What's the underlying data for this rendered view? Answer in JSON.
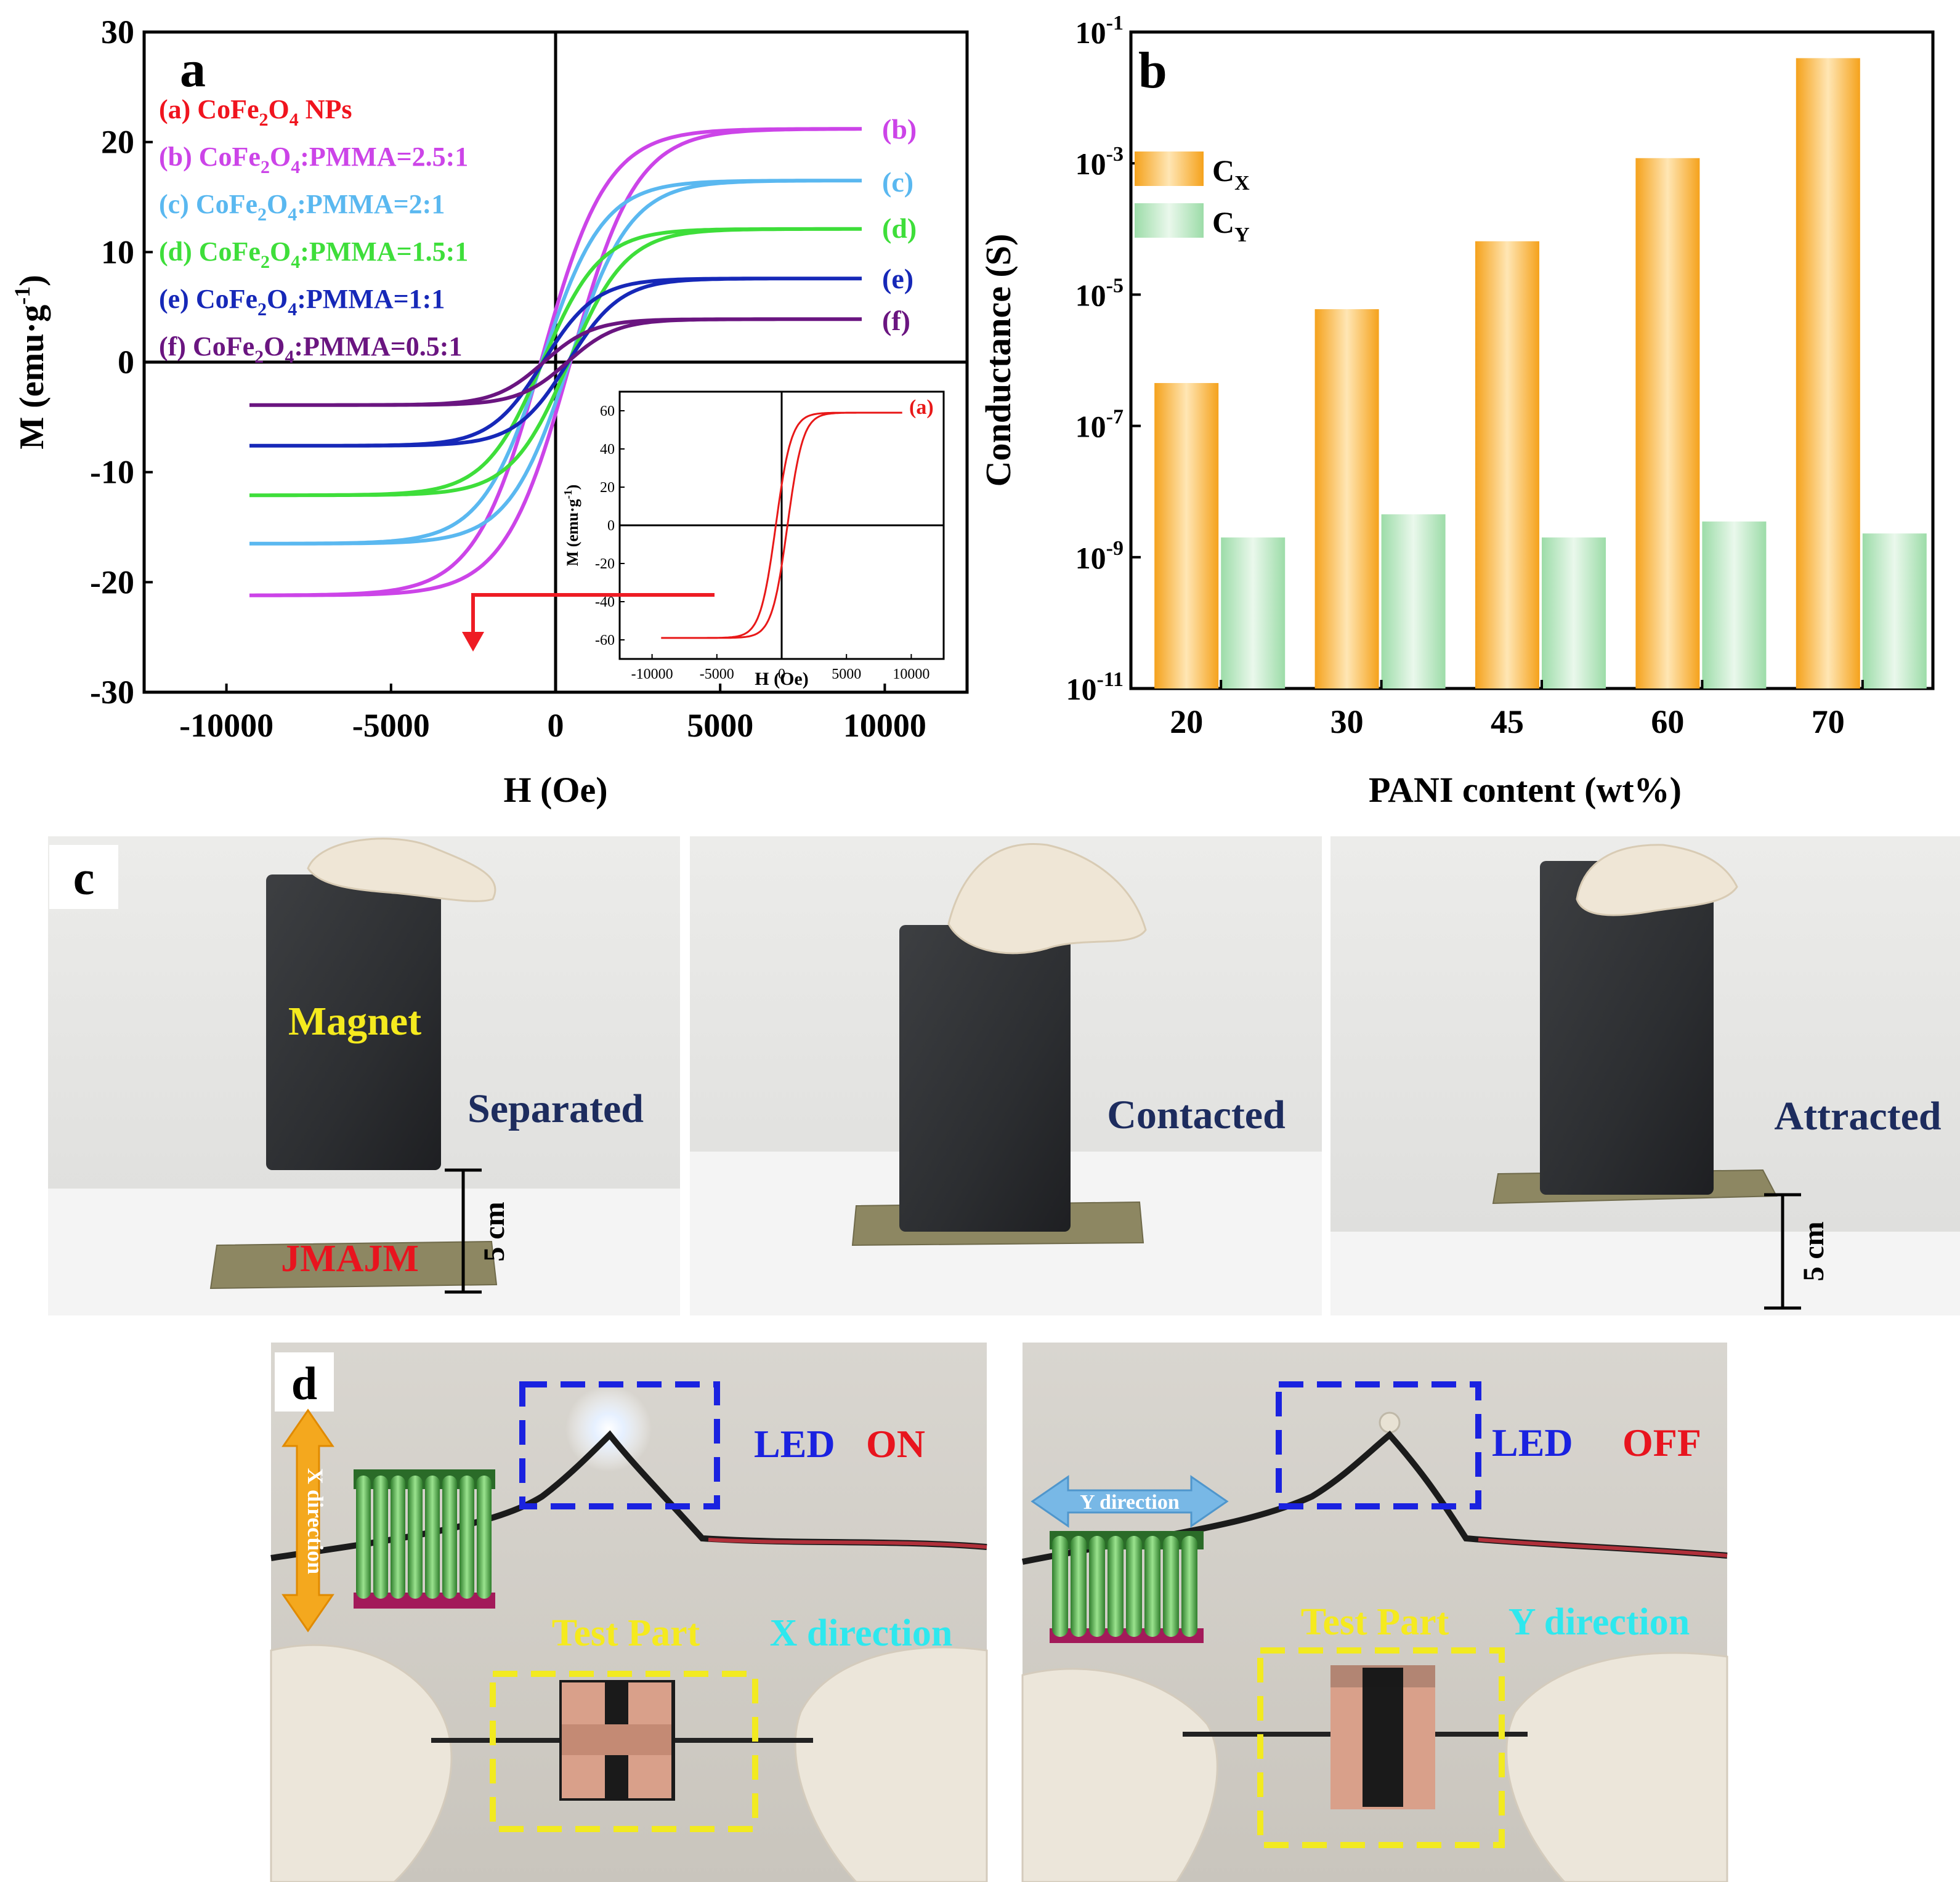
{
  "panel_a": {
    "letter": "a",
    "legend": [
      {
        "prefix": "(a) CoFe",
        "s1": "2",
        "mid": "O",
        "s2": "4",
        "suffix": " NPs",
        "color": "#f0141e"
      },
      {
        "prefix": "(b) CoFe",
        "s1": "2",
        "mid": "O",
        "s2": "4",
        "suffix": ":PMMA=2.5:1",
        "color": "#cc44e8"
      },
      {
        "prefix": "(c) CoFe",
        "s1": "2",
        "mid": "O",
        "s2": "4",
        "suffix": ":PMMA=2:1",
        "color": "#5ab8f0"
      },
      {
        "prefix": "(d) CoFe",
        "s1": "2",
        "mid": "O",
        "s2": "4",
        "suffix": ":PMMA=1.5:1",
        "color": "#3ede3a"
      },
      {
        "prefix": "(e) CoFe",
        "s1": "2",
        "mid": "O",
        "s2": "4",
        "suffix": ":PMMA=1:1",
        "color": "#1628b8"
      },
      {
        "prefix": "(f) CoFe",
        "s1": "2",
        "mid": "O",
        "s2": "4",
        "suffix": ":PMMA=0.5:1",
        "color": "#6a1580"
      }
    ],
    "curve_tags": [
      {
        "label": "(b)",
        "color": "#cc44e8",
        "at": 21.2
      },
      {
        "label": "(c)",
        "color": "#5ab8f0",
        "at": 16.4
      },
      {
        "label": "(d)",
        "color": "#3ede3a",
        "at": 12.2
      },
      {
        "label": "(e)",
        "color": "#1628b8",
        "at": 7.6
      },
      {
        "label": "(f)",
        "color": "#6a1580",
        "at": 3.8
      }
    ],
    "inset": {
      "xlabel": "H (Oe)",
      "ylabel_main": "M (emu·g",
      "ylabel_sup": "-1",
      "ylabel_end": ")",
      "curve_tag": "(a)",
      "curve_color": "#e81818"
    }
  },
  "chart_data": [
    {
      "type": "line",
      "xlabel": "H (Oe)",
      "ylabel_main": "M (emu·g",
      "ylabel_sup": "-1",
      "ylabel_end": ")",
      "xlim": [
        -12500,
        12500
      ],
      "ylim": [
        -30,
        30
      ],
      "x_ticks": [
        "-10000",
        "-5000",
        "0",
        "5000",
        "10000"
      ],
      "x_tick_values": [
        -10000,
        -5000,
        0,
        5000,
        10000
      ],
      "y_ticks": [
        "30",
        "20",
        "10",
        "0",
        "-10",
        "-20",
        "-30"
      ],
      "y_tick_values": [
        30,
        20,
        10,
        0,
        -10,
        -20,
        -30
      ],
      "x_range": [
        -9300,
        9300
      ],
      "series": [
        {
          "name": "(b)",
          "Ms": 21.2,
          "Hc": 450,
          "H0": 2000,
          "color": "#cc44e8"
        },
        {
          "name": "(c)",
          "Ms": 16.5,
          "Hc": 420,
          "H0": 1850,
          "color": "#5ab8f0"
        },
        {
          "name": "(d)",
          "Ms": 12.1,
          "Hc": 400,
          "H0": 1750,
          "color": "#3ede3a"
        },
        {
          "name": "(e)",
          "Ms": 7.6,
          "Hc": 380,
          "H0": 1600,
          "color": "#1628b8"
        },
        {
          "name": "(f)",
          "Ms": 3.9,
          "Hc": 360,
          "H0": 1500,
          "color": "#6a1580"
        }
      ],
      "inset": {
        "xlim": [
          -12500,
          12500
        ],
        "ylim": [
          -70,
          70
        ],
        "x_ticks": [
          "-10000",
          "-5000",
          "0",
          "5000",
          "10000"
        ],
        "x_tick_values": [
          -10000,
          -5000,
          0,
          5000,
          10000
        ],
        "y_ticks": [
          "60",
          "40",
          "20",
          "0",
          "-20",
          "-40",
          "-60"
        ],
        "y_tick_values": [
          60,
          40,
          20,
          0,
          -20,
          -40,
          -60
        ],
        "series": [
          {
            "name": "(a)",
            "Ms": 59,
            "Hc": 450,
            "H0": 1200,
            "color": "#e81818"
          }
        ]
      }
    },
    {
      "type": "bar",
      "xlabel": "PANI content (wt%)",
      "ylabel": "Conductance (S)",
      "scale": "log",
      "categories": [
        "20",
        "30",
        "45",
        "60",
        "70"
      ],
      "ylim": [
        1e-11,
        0.1
      ],
      "y_ticks": [
        {
          "base": "10",
          "exp": "-1",
          "v": -1
        },
        {
          "base": "10",
          "exp": "-3",
          "v": -3
        },
        {
          "base": "10",
          "exp": "-5",
          "v": -5
        },
        {
          "base": "10",
          "exp": "-7",
          "v": -7
        },
        {
          "base": "10",
          "exp": "-9",
          "v": -9
        },
        {
          "base": "10",
          "exp": "-11",
          "v": -11
        }
      ],
      "series": [
        {
          "name": "C",
          "sub": "X",
          "values": [
            4.5e-07,
            6e-06,
            6.5e-05,
            0.0012,
            0.04
          ],
          "color": "#f7a92c"
        },
        {
          "name": "C",
          "sub": "Y",
          "values": [
            2e-09,
            4.5e-09,
            2e-09,
            3.5e-09,
            2.3e-09
          ],
          "color": "#9fdcab"
        }
      ]
    }
  ],
  "panel_b": {
    "letter": "b"
  },
  "panel_c": {
    "letter": "c",
    "magnet_label": "Magnet",
    "sample_label": "JMAJM",
    "states": [
      "Separated",
      "Contacted",
      "Attracted"
    ],
    "distance": "5 cm"
  },
  "panel_d": {
    "letter": "d",
    "left": {
      "led": "LED",
      "state": "ON",
      "test": "Test Part",
      "dir": "X direction",
      "arrow": "X direction"
    },
    "right": {
      "led": "LED",
      "state": "OFF",
      "test": "Test Part",
      "dir": "Y direction",
      "arrow": "Y direction"
    }
  },
  "colors": {
    "label_yellow": "#f5ea1e",
    "label_red": "#e8141e",
    "label_navy": "#1d2c5e",
    "label_blue": "#1a22e0",
    "label_cyan": "#2ee8ee",
    "box_blue": "#1a22e0",
    "box_yellow": "#f2ea20"
  }
}
